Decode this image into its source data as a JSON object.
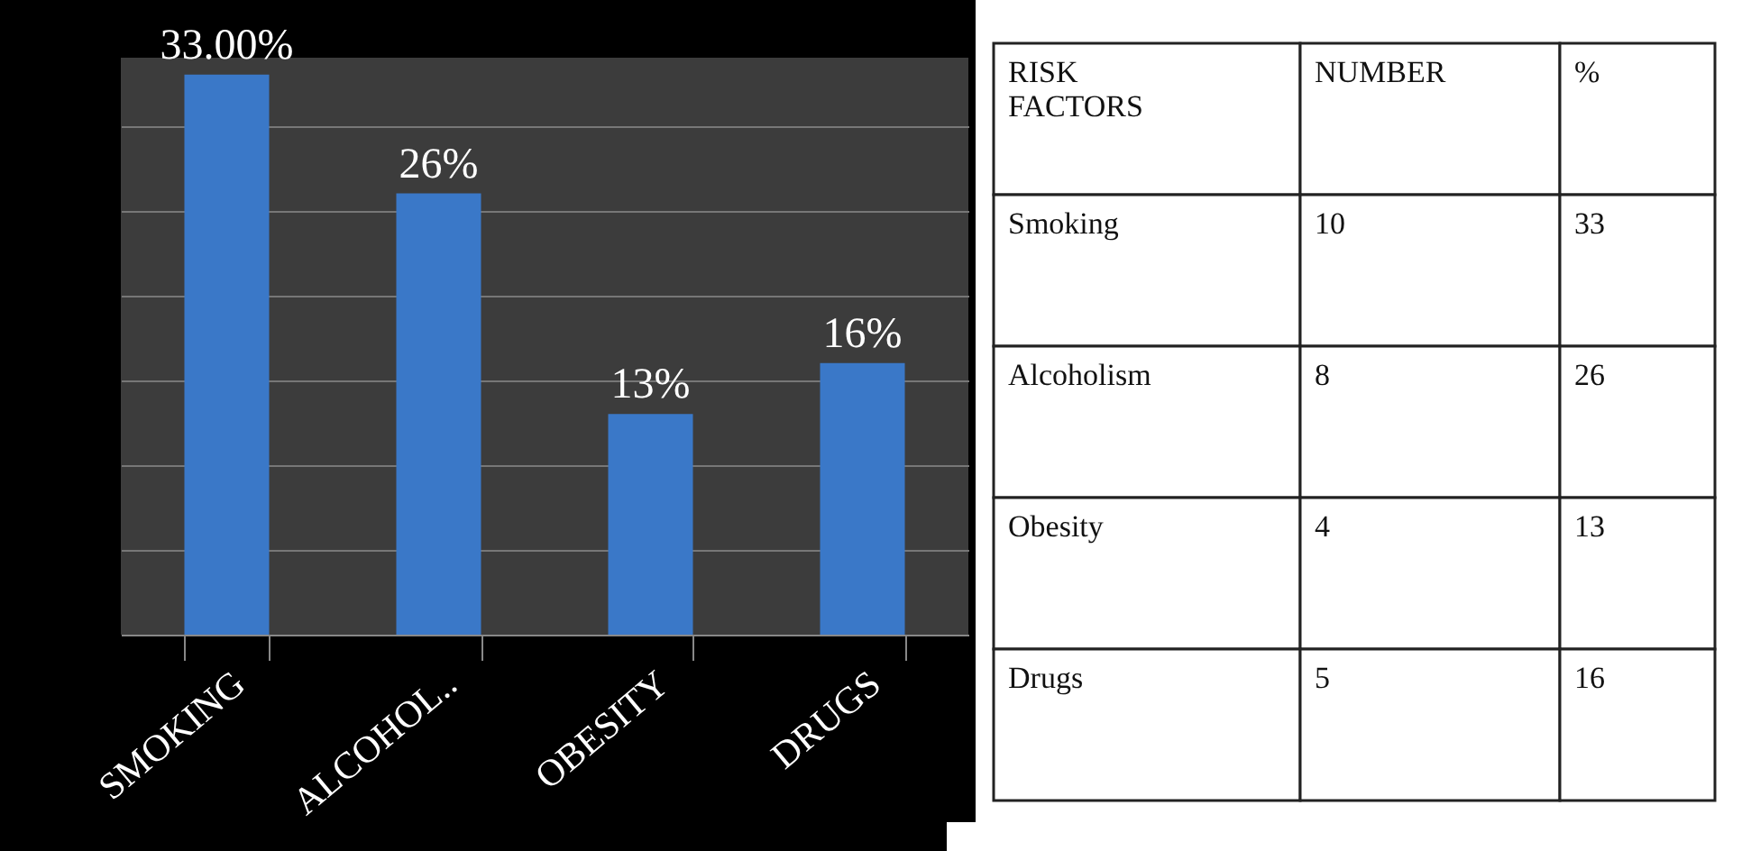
{
  "chart_data": [
    {
      "type": "bar",
      "categories": [
        "SMOKING",
        "ALCOHOL..",
        "OBESITY",
        "DRUGS"
      ],
      "values": [
        33,
        26,
        13,
        16
      ],
      "value_labels": [
        "33.00%",
        "26%",
        "13%",
        "16%"
      ],
      "color": "#3a78c8",
      "ylim": [
        0,
        34
      ],
      "yticks": [
        {
          "value": 0,
          "label": null
        },
        {
          "value": 5,
          "label": null
        },
        {
          "value": 10,
          "label": null
        },
        {
          "value": 15,
          "label": null
        },
        {
          "value": 20,
          "label": null
        },
        {
          "value": 25,
          "label": null
        },
        {
          "value": 30,
          "label": null
        }
      ],
      "grid": "y",
      "tick_labels": "x"
    },
    {
      "type": "other",
      "annotations": [
        "RISK FACTORS",
        "NUMBER",
        "%",
        "Smoking",
        "10",
        "33",
        "Alcoholism",
        "8",
        "26",
        "Obesity",
        "4",
        "13",
        "Drugs",
        "5",
        "16"
      ]
    }
  ]
}
